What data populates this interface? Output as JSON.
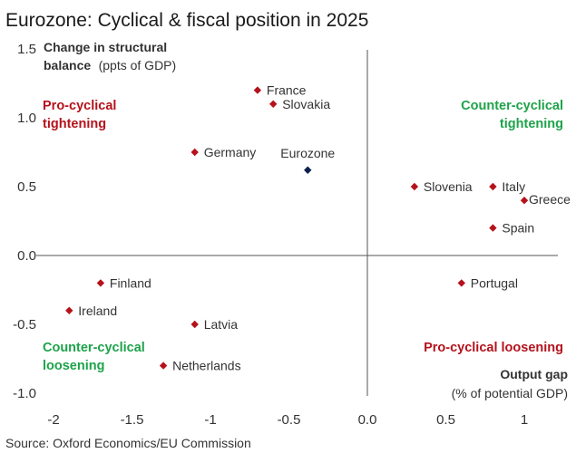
{
  "chart_data": {
    "type": "scatter",
    "title": "Eurozone: Cyclical & fiscal position in 2025",
    "ylabel_bold": "Change in structural",
    "ylabel_bold2": "balance",
    "ylabel_unit": "(ppts of GDP)",
    "xlabel_bold": "Output gap",
    "xlabel_unit": "(% of potential GDP)",
    "xlim": [
      -2.2,
      1.2
    ],
    "ylim": [
      -1.0,
      1.5
    ],
    "xticks": [
      -2,
      -1.5,
      -1,
      -0.5,
      0,
      0.5,
      1
    ],
    "xtick_labels": [
      "-2",
      "-1.5",
      "-1",
      "-0.5",
      "0.0",
      "0.5",
      "1"
    ],
    "yticks": [
      1.5,
      1.0,
      0.5,
      0.0,
      -0.5,
      -1.0
    ],
    "ytick_labels": [
      "1.5",
      "1.0",
      "0.5",
      "0.0",
      "-0.5",
      "-1.0"
    ],
    "points": [
      {
        "name": "France",
        "x": -0.7,
        "y": 1.2,
        "color": "#b5121b"
      },
      {
        "name": "Slovakia",
        "x": -0.6,
        "y": 1.1,
        "color": "#b5121b"
      },
      {
        "name": "Germany",
        "x": -1.1,
        "y": 0.75,
        "color": "#b5121b"
      },
      {
        "name": "Eurozone",
        "x": -0.38,
        "y": 0.62,
        "color": "#0d1f4f"
      },
      {
        "name": "Slovenia",
        "x": 0.3,
        "y": 0.5,
        "color": "#b5121b"
      },
      {
        "name": "Italy",
        "x": 0.8,
        "y": 0.5,
        "color": "#b5121b"
      },
      {
        "name": "Greece",
        "x": 1.0,
        "y": 0.4,
        "color": "#b5121b"
      },
      {
        "name": "Spain",
        "x": 0.8,
        "y": 0.2,
        "color": "#b5121b"
      },
      {
        "name": "Finland",
        "x": -1.7,
        "y": -0.2,
        "color": "#b5121b"
      },
      {
        "name": "Portugal",
        "x": 0.6,
        "y": -0.2,
        "color": "#b5121b"
      },
      {
        "name": "Ireland",
        "x": -1.9,
        "y": -0.4,
        "color": "#b5121b"
      },
      {
        "name": "Latvia",
        "x": -1.1,
        "y": -0.5,
        "color": "#b5121b"
      },
      {
        "name": "Netherlands",
        "x": -1.3,
        "y": -0.8,
        "color": "#b5121b"
      }
    ],
    "quadrants": {
      "top_left": [
        "Pro-cyclical",
        "tightening"
      ],
      "top_right": [
        "Counter-cyclical",
        "tightening"
      ],
      "bottom_left": [
        "Counter-cyclical",
        "loosening"
      ],
      "bottom_right": [
        "Pro-cyclical loosening"
      ]
    },
    "colors": {
      "pro": "#b5121b",
      "counter": "#1ea34a",
      "axis": "#555555"
    }
  },
  "source": "Source: Oxford Economics/EU Commission"
}
